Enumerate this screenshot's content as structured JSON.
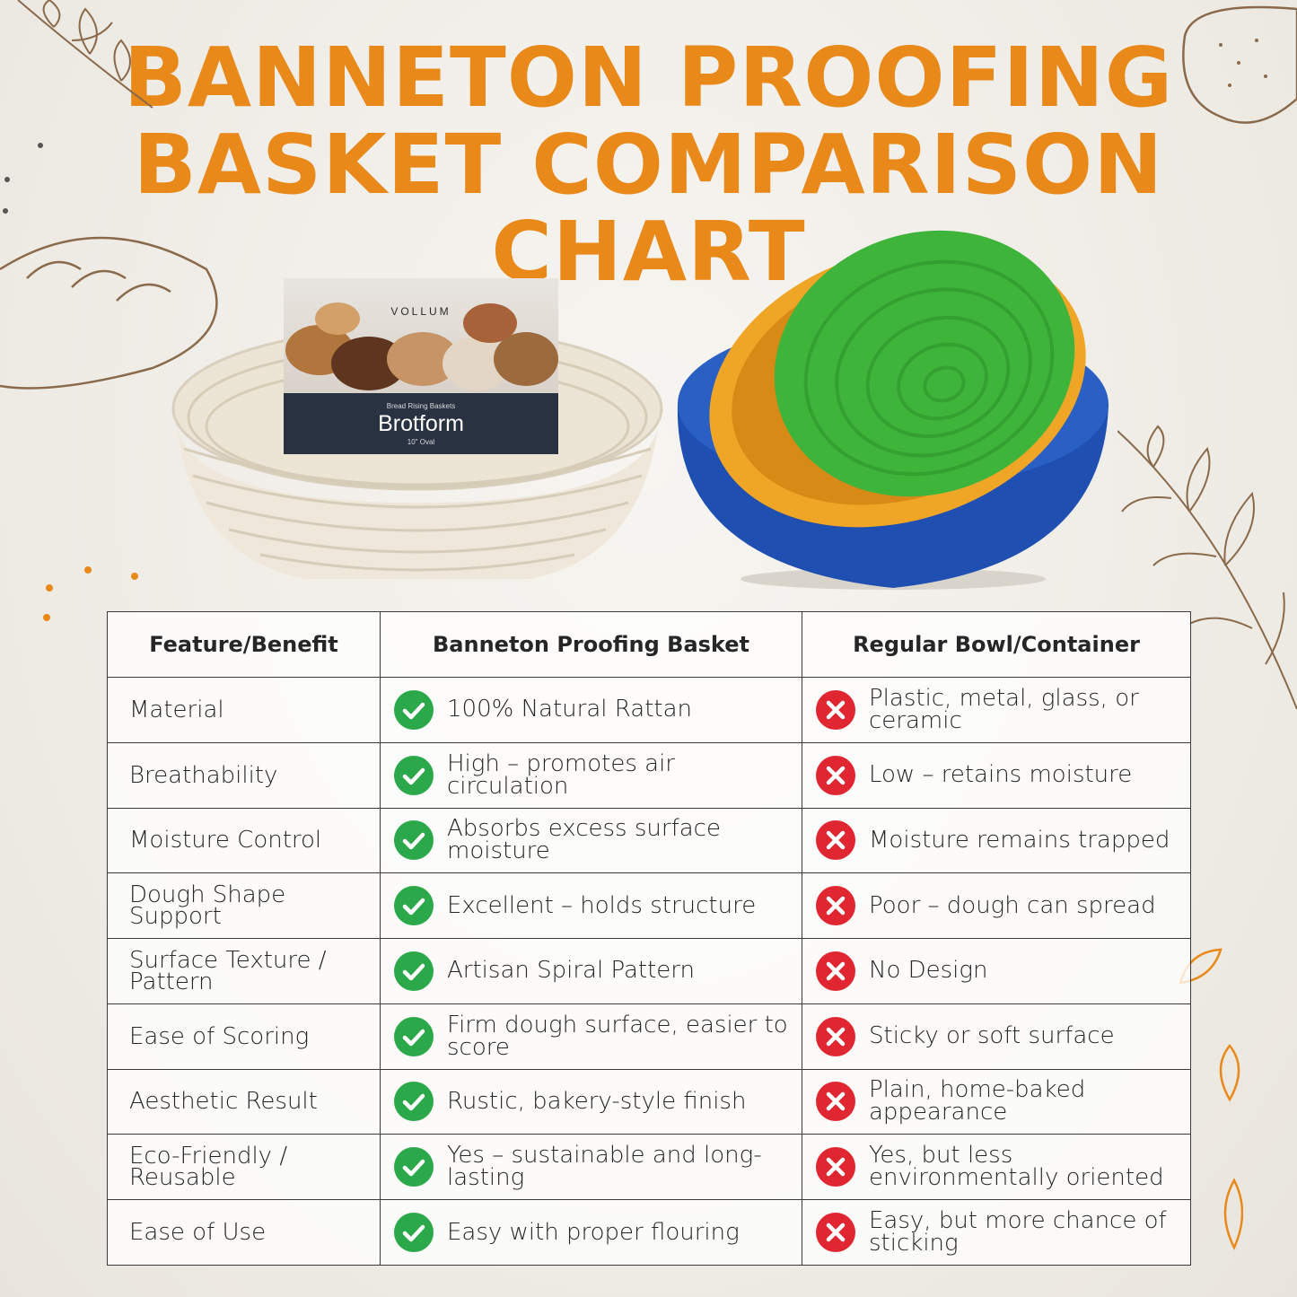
{
  "title": {
    "line1": "BANNETON PROOFING",
    "line2": "BASKET COMPARISON CHART"
  },
  "colors": {
    "accent": "#e8891a",
    "check": "#2ba84a",
    "cross": "#e02631",
    "border": "#3a3a3a"
  },
  "product_card": {
    "brand": "VOLLUM",
    "subtitle": "Bread Rising Baskets",
    "name": "Brotform",
    "size": "10\" Oval"
  },
  "table": {
    "headers": [
      "Feature/Benefit",
      "Banneton Proofing Basket",
      "Regular Bowl/Container"
    ],
    "rows": [
      {
        "feature": "Material",
        "banneton": "100% Natural Rattan",
        "bowl": "Plastic, metal, glass, or ceramic"
      },
      {
        "feature": "Breathability",
        "banneton": "High – promotes air circulation",
        "bowl": "Low – retains moisture"
      },
      {
        "feature": "Moisture Control",
        "banneton": "Absorbs excess surface moisture",
        "bowl": "Moisture remains trapped"
      },
      {
        "feature": "Dough Shape Support",
        "banneton": "Excellent – holds structure",
        "bowl": "Poor – dough can spread"
      },
      {
        "feature": "Surface Texture / Pattern",
        "banneton": "Artisan Spiral Pattern",
        "bowl": "No Design"
      },
      {
        "feature": "Ease of Scoring",
        "banneton": "Firm dough surface, easier to score",
        "bowl": "Sticky or soft surface"
      },
      {
        "feature": "Aesthetic Result",
        "banneton": "Rustic, bakery-style finish",
        "bowl": "Plain, home-baked appearance"
      },
      {
        "feature": "Eco-Friendly / Reusable",
        "banneton": "Yes – sustainable and long-lasting",
        "bowl": "Yes, but less environmentally oriented"
      },
      {
        "feature": "Ease of Use",
        "banneton": "Easy with proper flouring",
        "bowl": "Easy, but more chance of sticking"
      }
    ]
  }
}
